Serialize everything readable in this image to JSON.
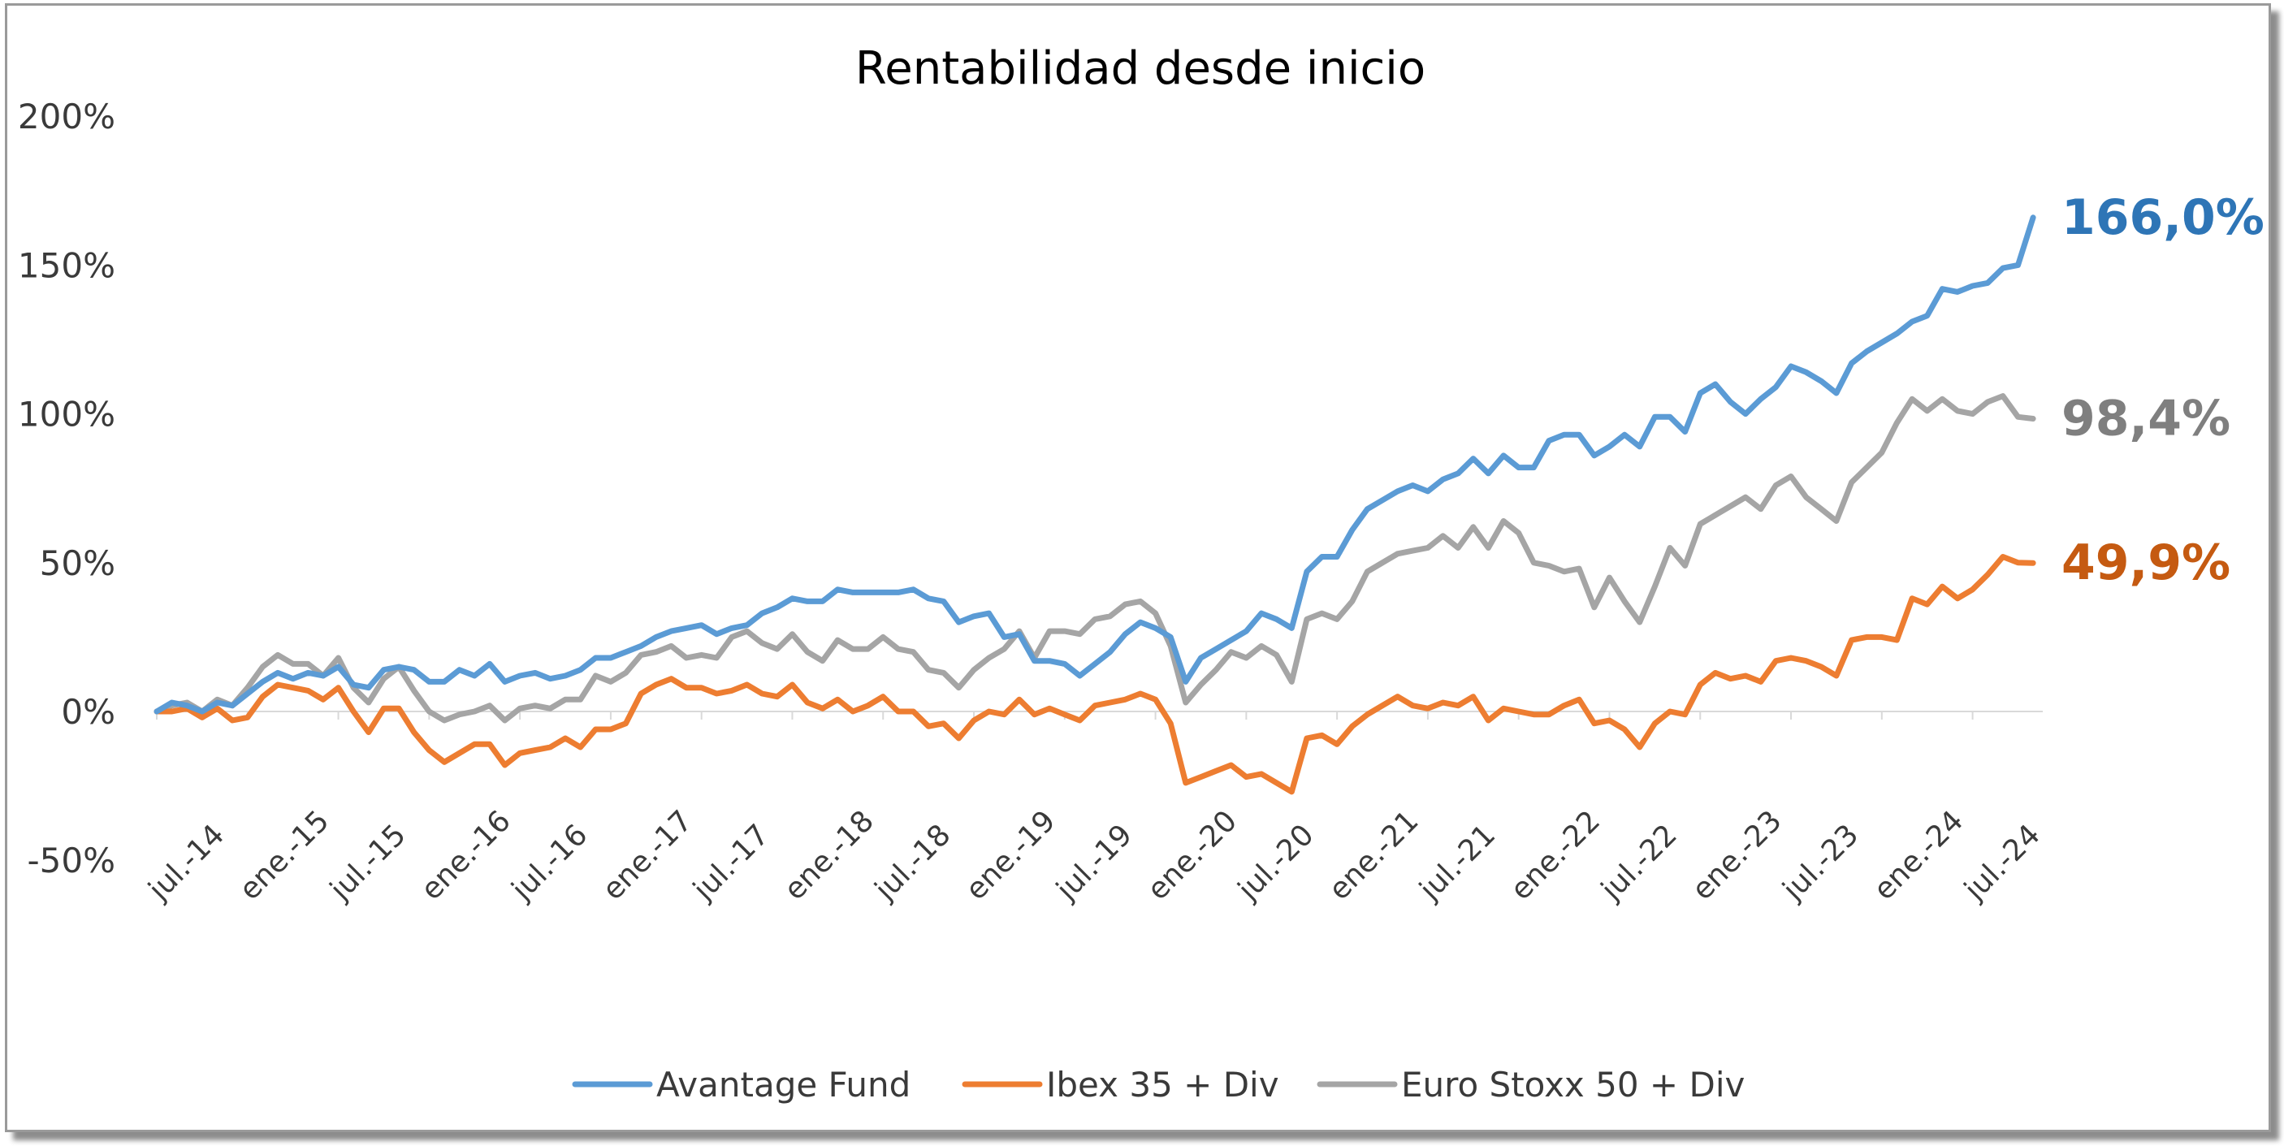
{
  "chart_data": {
    "type": "line",
    "title": "Rentabilidad desde inicio",
    "xlabel": "",
    "ylabel": "",
    "ylim": [
      -50,
      200
    ],
    "yticks": [
      "200%",
      "150%",
      "100%",
      "50%",
      "0%",
      "-50%"
    ],
    "ytick_values": [
      200,
      150,
      100,
      50,
      0,
      -50
    ],
    "xticks": [
      "jul.-14",
      "ene.-15",
      "jul.-15",
      "ene.-16",
      "jul.-16",
      "ene.-17",
      "jul.-17",
      "ene.-18",
      "jul.-18",
      "ene.-19",
      "jul.-19",
      "ene.-20",
      "jul.-20",
      "ene.-21",
      "jul.-21",
      "ene.-22",
      "jul.-22",
      "ene.-23",
      "jul.-23",
      "ene.-24",
      "jul.-24"
    ],
    "x_start": "jul.-14",
    "x_end": "dic.-24",
    "legend_position": "bottom",
    "grid": false,
    "series": [
      {
        "name": "Avantage Fund",
        "color": "#5b9bd5",
        "end_label": "166,0%",
        "end_label_color": "#2e75b6",
        "values": [
          0,
          3,
          2,
          0,
          3,
          2,
          6,
          10,
          13,
          11,
          13,
          12,
          15,
          9,
          8,
          14,
          15,
          14,
          10,
          10,
          14,
          12,
          16,
          10,
          12,
          13,
          11,
          12,
          14,
          18,
          18,
          20,
          22,
          25,
          27,
          28,
          29,
          26,
          28,
          29,
          33,
          35,
          38,
          37,
          37,
          41,
          40,
          40,
          40,
          40,
          41,
          38,
          37,
          30,
          32,
          33,
          25,
          26,
          17,
          17,
          16,
          12,
          16,
          20,
          26,
          30,
          28,
          25,
          10,
          18,
          21,
          24,
          27,
          33,
          31,
          28,
          47,
          52,
          52,
          61,
          68,
          71,
          74,
          76,
          74,
          78,
          80,
          85,
          80,
          86,
          82,
          82,
          91,
          93,
          93,
          86,
          89,
          93,
          89,
          99,
          99,
          94,
          107,
          110,
          104,
          100,
          105,
          109,
          116,
          114,
          111,
          107,
          117,
          121,
          124,
          127,
          131,
          133,
          142,
          141,
          143,
          144,
          149,
          150,
          166
        ]
      },
      {
        "name": "Ibex 35 + Div",
        "color": "#ed7d31",
        "end_label": "49,9%",
        "end_label_color": "#c55a11",
        "values": [
          0,
          0,
          1,
          -2,
          1,
          -3,
          -2,
          5,
          9,
          8,
          7,
          4,
          8,
          0,
          -7,
          1,
          1,
          -7,
          -13,
          -17,
          -14,
          -11,
          -11,
          -18,
          -14,
          -13,
          -12,
          -9,
          -12,
          -6,
          -6,
          -4,
          6,
          9,
          11,
          8,
          8,
          6,
          7,
          9,
          6,
          5,
          9,
          3,
          1,
          4,
          0,
          2,
          5,
          0,
          0,
          -5,
          -4,
          -9,
          -3,
          0,
          -1,
          4,
          -1,
          1,
          -1,
          -3,
          2,
          3,
          4,
          6,
          4,
          -4,
          -24,
          -22,
          -20,
          -18,
          -22,
          -21,
          -24,
          -27,
          -9,
          -8,
          -11,
          -5,
          -1,
          2,
          5,
          2,
          1,
          3,
          2,
          5,
          -3,
          1,
          0,
          -1,
          -1,
          2,
          4,
          -4,
          -3,
          -6,
          -12,
          -4,
          0,
          -1,
          9,
          13,
          11,
          12,
          10,
          17,
          18,
          17,
          15,
          12,
          24,
          25,
          25,
          24,
          38,
          36,
          42,
          38,
          41,
          46,
          52,
          50,
          49.9
        ]
      },
      {
        "name": "Euro Stoxx 50 + Div",
        "color": "#a5a5a5",
        "end_label": "98,4%",
        "end_label_color": "#7f7f7f",
        "values": [
          0,
          2,
          3,
          0,
          4,
          2,
          8,
          15,
          19,
          16,
          16,
          12,
          18,
          8,
          3,
          11,
          15,
          7,
          0,
          -3,
          -1,
          0,
          2,
          -3,
          1,
          2,
          1,
          4,
          4,
          12,
          10,
          13,
          19,
          20,
          22,
          18,
          19,
          18,
          25,
          27,
          23,
          21,
          26,
          20,
          17,
          24,
          21,
          21,
          25,
          21,
          20,
          14,
          13,
          8,
          14,
          18,
          21,
          27,
          18,
          27,
          27,
          26,
          31,
          32,
          36,
          37,
          33,
          22,
          3,
          9,
          14,
          20,
          18,
          22,
          19,
          10,
          31,
          33,
          31,
          37,
          47,
          50,
          53,
          54,
          55,
          59,
          55,
          62,
          55,
          64,
          60,
          50,
          49,
          47,
          48,
          35,
          45,
          37,
          30,
          42,
          55,
          49,
          63,
          66,
          69,
          72,
          68,
          76,
          79,
          72,
          68,
          64,
          77,
          82,
          87,
          97,
          105,
          101,
          105,
          101,
          100,
          104,
          106,
          99,
          98.4
        ]
      }
    ]
  }
}
